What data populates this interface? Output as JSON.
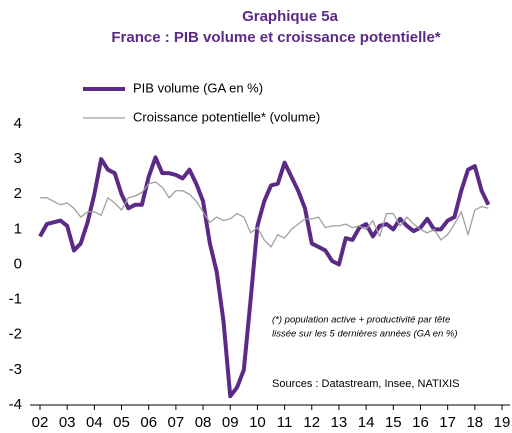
{
  "chart_data": {
    "type": "line",
    "title": "Graphique 5a",
    "subtitle": "France : PIB volume et croissance potentielle*",
    "annotation": [
      "(*) population active + productivité par tête",
      "lissée sur les 5 dernières années (GA en %)"
    ],
    "source": "Sources : Datastream, Insee, NATIXIS",
    "x": [
      2002,
      2002.25,
      2002.5,
      2002.75,
      2003,
      2003.25,
      2003.5,
      2003.75,
      2004,
      2004.25,
      2004.5,
      2004.75,
      2005,
      2005.25,
      2005.5,
      2005.75,
      2006,
      2006.25,
      2006.5,
      2006.75,
      2007,
      2007.25,
      2007.5,
      2007.75,
      2008,
      2008.25,
      2008.5,
      2008.75,
      2009,
      2009.25,
      2009.5,
      2009.75,
      2010,
      2010.25,
      2010.5,
      2010.75,
      2011,
      2011.25,
      2011.5,
      2011.75,
      2012,
      2012.25,
      2012.5,
      2012.75,
      2013,
      2013.25,
      2013.5,
      2013.75,
      2014,
      2014.25,
      2014.5,
      2014.75,
      2015,
      2015.25,
      2015.5,
      2015.75,
      2016,
      2016.25,
      2016.5,
      2016.75,
      2017,
      2017.25,
      2017.5,
      2017.75,
      2018,
      2018.25,
      2018.5
    ],
    "series": [
      {
        "name": "PIB volume (GA en %)",
        "color": "#5b2a86",
        "width": 4,
        "values": [
          0.8,
          1.15,
          1.2,
          1.25,
          1.1,
          0.4,
          0.6,
          1.2,
          2.0,
          3.0,
          2.7,
          2.6,
          2.0,
          1.6,
          1.7,
          1.7,
          2.5,
          3.05,
          2.6,
          2.6,
          2.55,
          2.45,
          2.7,
          2.3,
          1.8,
          0.6,
          -0.2,
          -1.6,
          -3.75,
          -3.5,
          -3.0,
          -1.0,
          1.1,
          1.8,
          2.25,
          2.3,
          2.9,
          2.5,
          2.1,
          1.6,
          0.6,
          0.5,
          0.4,
          0.1,
          0.0,
          0.75,
          0.7,
          1.05,
          1.15,
          0.8,
          1.1,
          1.15,
          1.0,
          1.3,
          1.1,
          0.95,
          1.05,
          1.3,
          1.0,
          1.0,
          1.25,
          1.35,
          2.1,
          2.7,
          2.8,
          2.1,
          1.7
        ]
      },
      {
        "name": "Croissance potentielle* (volume)",
        "color": "#a0a0a0",
        "width": 1.3,
        "values": [
          1.9,
          1.9,
          1.8,
          1.7,
          1.75,
          1.6,
          1.35,
          1.5,
          1.5,
          1.4,
          1.9,
          1.75,
          1.55,
          1.9,
          1.95,
          2.05,
          2.3,
          2.35,
          2.2,
          1.9,
          2.1,
          2.1,
          2.0,
          1.8,
          1.5,
          1.2,
          1.35,
          1.25,
          1.3,
          1.45,
          1.35,
          0.9,
          1.05,
          0.7,
          0.5,
          0.85,
          0.75,
          1.0,
          1.15,
          1.3,
          1.3,
          1.35,
          1.05,
          1.1,
          1.1,
          1.15,
          1.05,
          1.1,
          1.0,
          1.25,
          0.8,
          1.45,
          1.45,
          1.1,
          1.35,
          1.15,
          1.0,
          0.9,
          1.0,
          0.7,
          0.85,
          1.15,
          1.5,
          0.85,
          1.55,
          1.65,
          1.6
        ]
      }
    ],
    "xlim": [
      2002,
      2019
    ],
    "xticks": [
      {
        "value": 2002,
        "label": "02"
      },
      {
        "value": 2003,
        "label": "03"
      },
      {
        "value": 2004,
        "label": "04"
      },
      {
        "value": 2005,
        "label": "05"
      },
      {
        "value": 2006,
        "label": "06"
      },
      {
        "value": 2007,
        "label": "07"
      },
      {
        "value": 2008,
        "label": "08"
      },
      {
        "value": 2009,
        "label": "09"
      },
      {
        "value": 2010,
        "label": "10"
      },
      {
        "value": 2011,
        "label": "11"
      },
      {
        "value": 2012,
        "label": "12"
      },
      {
        "value": 2013,
        "label": "13"
      },
      {
        "value": 2014,
        "label": "14"
      },
      {
        "value": 2015,
        "label": "15"
      },
      {
        "value": 2016,
        "label": "16"
      },
      {
        "value": 2017,
        "label": "17"
      },
      {
        "value": 2018,
        "label": "18"
      },
      {
        "value": 2019,
        "label": "19"
      }
    ],
    "ylim": [
      -4,
      4
    ],
    "yticks": [
      -4,
      -3,
      -2,
      -1,
      0,
      1,
      2,
      3,
      4
    ]
  }
}
